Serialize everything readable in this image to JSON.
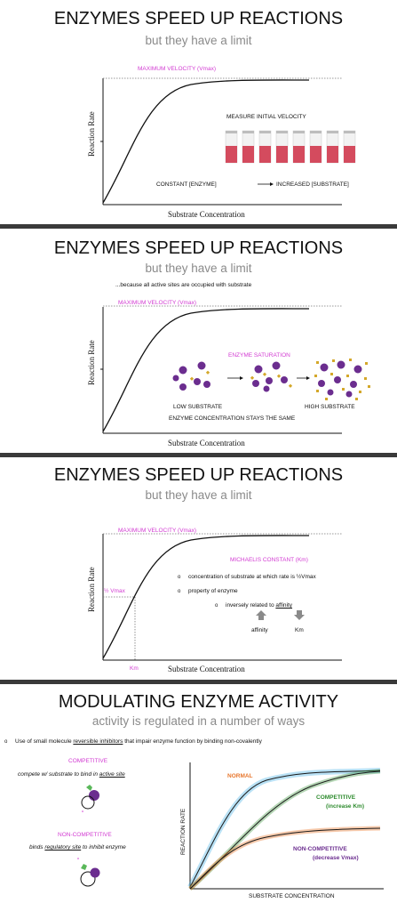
{
  "slide1": {
    "title": "ENZYMES SPEED UP REACTIONS",
    "subtitle": "but they have a limit",
    "vmax_label": "MAXIMUM VELOCITY (Vmax)",
    "ylabel": "Reaction Rate",
    "xlabel": "Substrate Concentration",
    "measure": "MEASURE INITIAL VELOCITY",
    "constant": "CONSTANT [ENZYME]",
    "increased": "INCREASED [SUBSTRATE]"
  },
  "slide2": {
    "title": "ENZYMES SPEED UP REACTIONS",
    "subtitle": "but they have a limit",
    "note": "...because all active sites are occupied with substrate",
    "vmax_label": "MAXIMUM VELOCITY (Vmax)",
    "ylabel": "Reaction Rate",
    "xlabel": "Substrate Concentration",
    "saturation": "ENZYME SATURATION",
    "low": "LOW SUBSTRATE",
    "high": "HIGH SUBSTRATE",
    "same": "ENZYME CONCENTRATION STAYS THE SAME"
  },
  "slide3": {
    "title": "ENZYMES SPEED UP REACTIONS",
    "subtitle": "but they have a limit",
    "vmax_label": "MAXIMUM VELOCITY (Vmax)",
    "ylabel": "Reaction Rate",
    "xlabel": "Substrate Concentration",
    "half_vmax": "½ Vmax",
    "km": "Km",
    "michaelis": "MICHAELIS CONSTANT (Km)",
    "b1": "concentration of substrate at which rate is ½Vmax",
    "b2": "property of enzyme",
    "b3_pre": "inversely related to ",
    "b3_link": "affinity",
    "affinity": "affinity",
    "km_arrow": "Km"
  },
  "slide4": {
    "title": "MODULATING ENZYME ACTIVITY",
    "subtitle": "activity is regulated in a number of ways",
    "bullet_pre": "Use of small molecule ",
    "bullet_u": "reversible inhibitors",
    "bullet_post": " that impair enzyme function by binding non-covalently",
    "competitive": "COMPETITIVE",
    "comp_desc_pre": "compete w/ substrate to bind in ",
    "comp_desc_u": "active site",
    "noncompetitive": "NON-COMPETITIVE",
    "non_desc_pre": "binds ",
    "non_desc_u": "regulatory site",
    "non_desc_post": " to inhibit enzyme",
    "ylabel": "REACTION RATE",
    "xlabel": "SUBSTRATE CONCENTRATION",
    "normal": "NORMAL",
    "comp_label": "COMPETITIVE",
    "comp_sub": "(increase Km)",
    "non_label": "NON-COMPETITIVE",
    "non_sub": "(decrease Vmax)",
    "colors": {
      "normal": "#36a9e1",
      "competitive": "#2e8b2e",
      "noncompetitive": "#e8772e",
      "pink": "#d23bd2",
      "purple": "#6b2d8f"
    }
  }
}
